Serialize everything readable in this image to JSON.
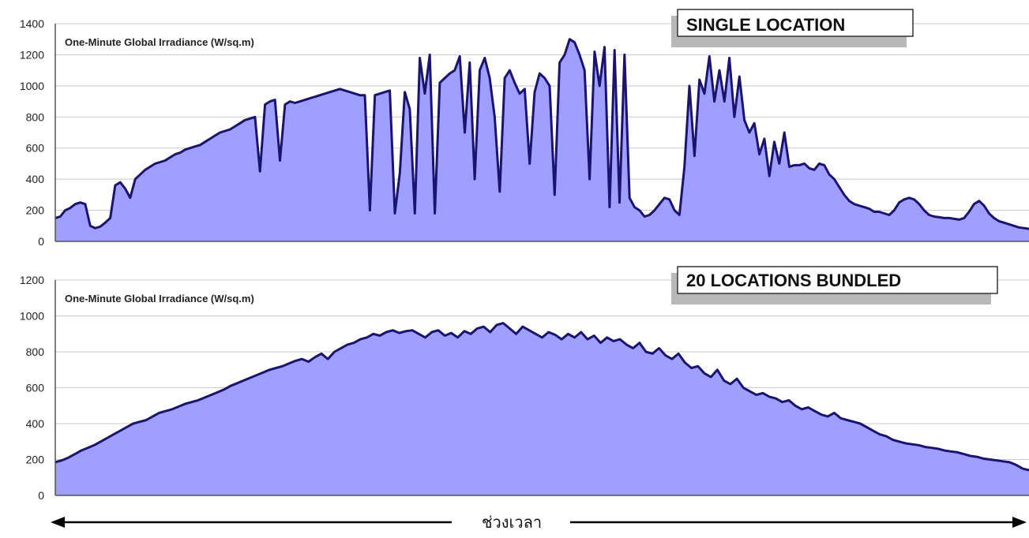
{
  "xaxis_label": "ช่วงเวลา",
  "chart_data": [
    {
      "type": "area",
      "title": "SINGLE LOCATION",
      "ylabel": "One-Minute Global Irradiance (W/sq.m)",
      "xlabel": "",
      "ylim": [
        0,
        1400
      ],
      "yticks": [
        0,
        200,
        400,
        600,
        800,
        1000,
        1200,
        1400
      ],
      "grid": true,
      "fill_color": "#9f9fff",
      "line_color": "#1a1470",
      "series": [
        {
          "values": [
            150,
            160,
            200,
            215,
            240,
            250,
            240,
            100,
            85,
            95,
            120,
            150,
            360,
            380,
            340,
            280,
            400,
            430,
            460,
            480,
            500,
            510,
            520,
            540,
            560,
            570,
            590,
            600,
            610,
            620,
            640,
            660,
            680,
            700,
            710,
            720,
            740,
            760,
            780,
            790,
            800,
            450,
            880,
            900,
            910,
            520,
            880,
            900,
            890,
            900,
            910,
            920,
            930,
            940,
            950,
            960,
            970,
            980,
            970,
            960,
            950,
            940,
            940,
            200,
            940,
            950,
            960,
            970,
            180,
            440,
            960,
            850,
            180,
            1180,
            950,
            1200,
            180,
            1020,
            1050,
            1080,
            1100,
            1190,
            700,
            1150,
            400,
            1100,
            1180,
            1050,
            800,
            320,
            1050,
            1100,
            1020,
            950,
            980,
            500,
            960,
            1080,
            1050,
            1000,
            300,
            1150,
            1200,
            1300,
            1280,
            1200,
            1100,
            400,
            1220,
            1000,
            1250,
            220,
            1230,
            250,
            1200,
            280,
            220,
            200,
            160,
            170,
            200,
            240,
            280,
            270,
            200,
            170,
            480,
            1000,
            550,
            1040,
            950,
            1190,
            900,
            1100,
            900,
            1180,
            800,
            1060,
            780,
            700,
            760,
            560,
            660,
            420,
            640,
            500,
            700,
            480,
            490,
            490,
            500,
            470,
            460,
            500,
            490,
            430,
            400,
            350,
            300,
            260,
            240,
            230,
            220,
            210,
            190,
            190,
            180,
            170,
            200,
            250,
            270,
            280,
            270,
            240,
            200,
            170,
            160,
            155,
            150,
            150,
            145,
            140,
            150,
            190,
            240,
            260,
            230,
            180,
            150,
            130,
            120,
            110,
            100,
            90,
            85,
            80
          ]
        }
      ]
    },
    {
      "type": "area",
      "title": "20 LOCATIONS BUNDLED",
      "ylabel": "One-Minute Global Irradiance (W/sq.m)",
      "xlabel": "",
      "ylim": [
        0,
        1200
      ],
      "yticks": [
        0,
        200,
        400,
        600,
        800,
        1000,
        1200
      ],
      "grid": true,
      "fill_color": "#9f9fff",
      "line_color": "#1a1470",
      "series": [
        {
          "values": [
            185,
            195,
            210,
            230,
            250,
            265,
            280,
            300,
            320,
            340,
            360,
            380,
            400,
            410,
            420,
            440,
            460,
            470,
            480,
            495,
            510,
            520,
            530,
            545,
            560,
            575,
            590,
            610,
            625,
            640,
            655,
            670,
            685,
            700,
            710,
            720,
            735,
            750,
            760,
            745,
            770,
            790,
            760,
            800,
            820,
            840,
            850,
            870,
            880,
            900,
            890,
            910,
            920,
            905,
            915,
            920,
            900,
            880,
            910,
            920,
            890,
            905,
            880,
            915,
            900,
            930,
            940,
            910,
            950,
            960,
            930,
            900,
            940,
            920,
            900,
            880,
            910,
            895,
            870,
            900,
            880,
            910,
            870,
            890,
            850,
            880,
            860,
            870,
            840,
            820,
            850,
            800,
            790,
            820,
            780,
            760,
            790,
            740,
            710,
            720,
            680,
            660,
            700,
            640,
            620,
            650,
            600,
            580,
            560,
            570,
            550,
            540,
            520,
            530,
            500,
            480,
            490,
            470,
            450,
            440,
            460,
            430,
            420,
            410,
            400,
            380,
            360,
            340,
            330,
            310,
            300,
            290,
            285,
            280,
            270,
            265,
            260,
            250,
            245,
            240,
            230,
            220,
            215,
            205,
            200,
            195,
            190,
            185,
            170,
            150,
            140
          ]
        }
      ]
    }
  ]
}
